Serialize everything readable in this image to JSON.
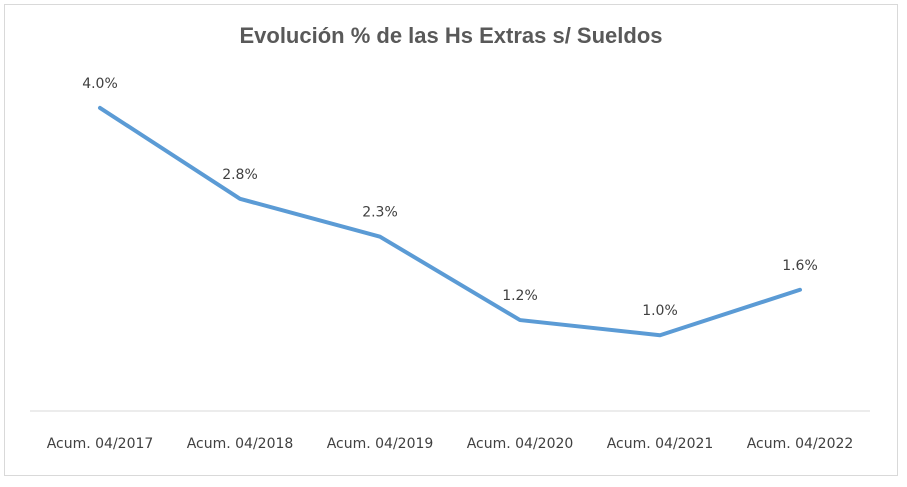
{
  "chart_data": {
    "type": "line",
    "title": "Evolución % de las Hs Extras s/ Sueldos",
    "categories": [
      "Acum. 04/2017",
      "Acum. 04/2018",
      "Acum. 04/2019",
      "Acum. 04/2020",
      "Acum. 04/2021",
      "Acum. 04/2022"
    ],
    "series": [
      {
        "values": [
          4.0,
          2.8,
          2.3,
          1.2,
          1.0,
          1.6
        ]
      }
    ],
    "data_labels": [
      "4.0%",
      "2.8%",
      "2.3%",
      "1.2%",
      "1.0%",
      "1.6%"
    ],
    "ylim": [
      0,
      4.5
    ],
    "grid": false,
    "legend": "none",
    "colors": {
      "line": "#5b9bd5",
      "axis": "#d9d9d9",
      "text": "#404040",
      "title": "#595959"
    }
  }
}
